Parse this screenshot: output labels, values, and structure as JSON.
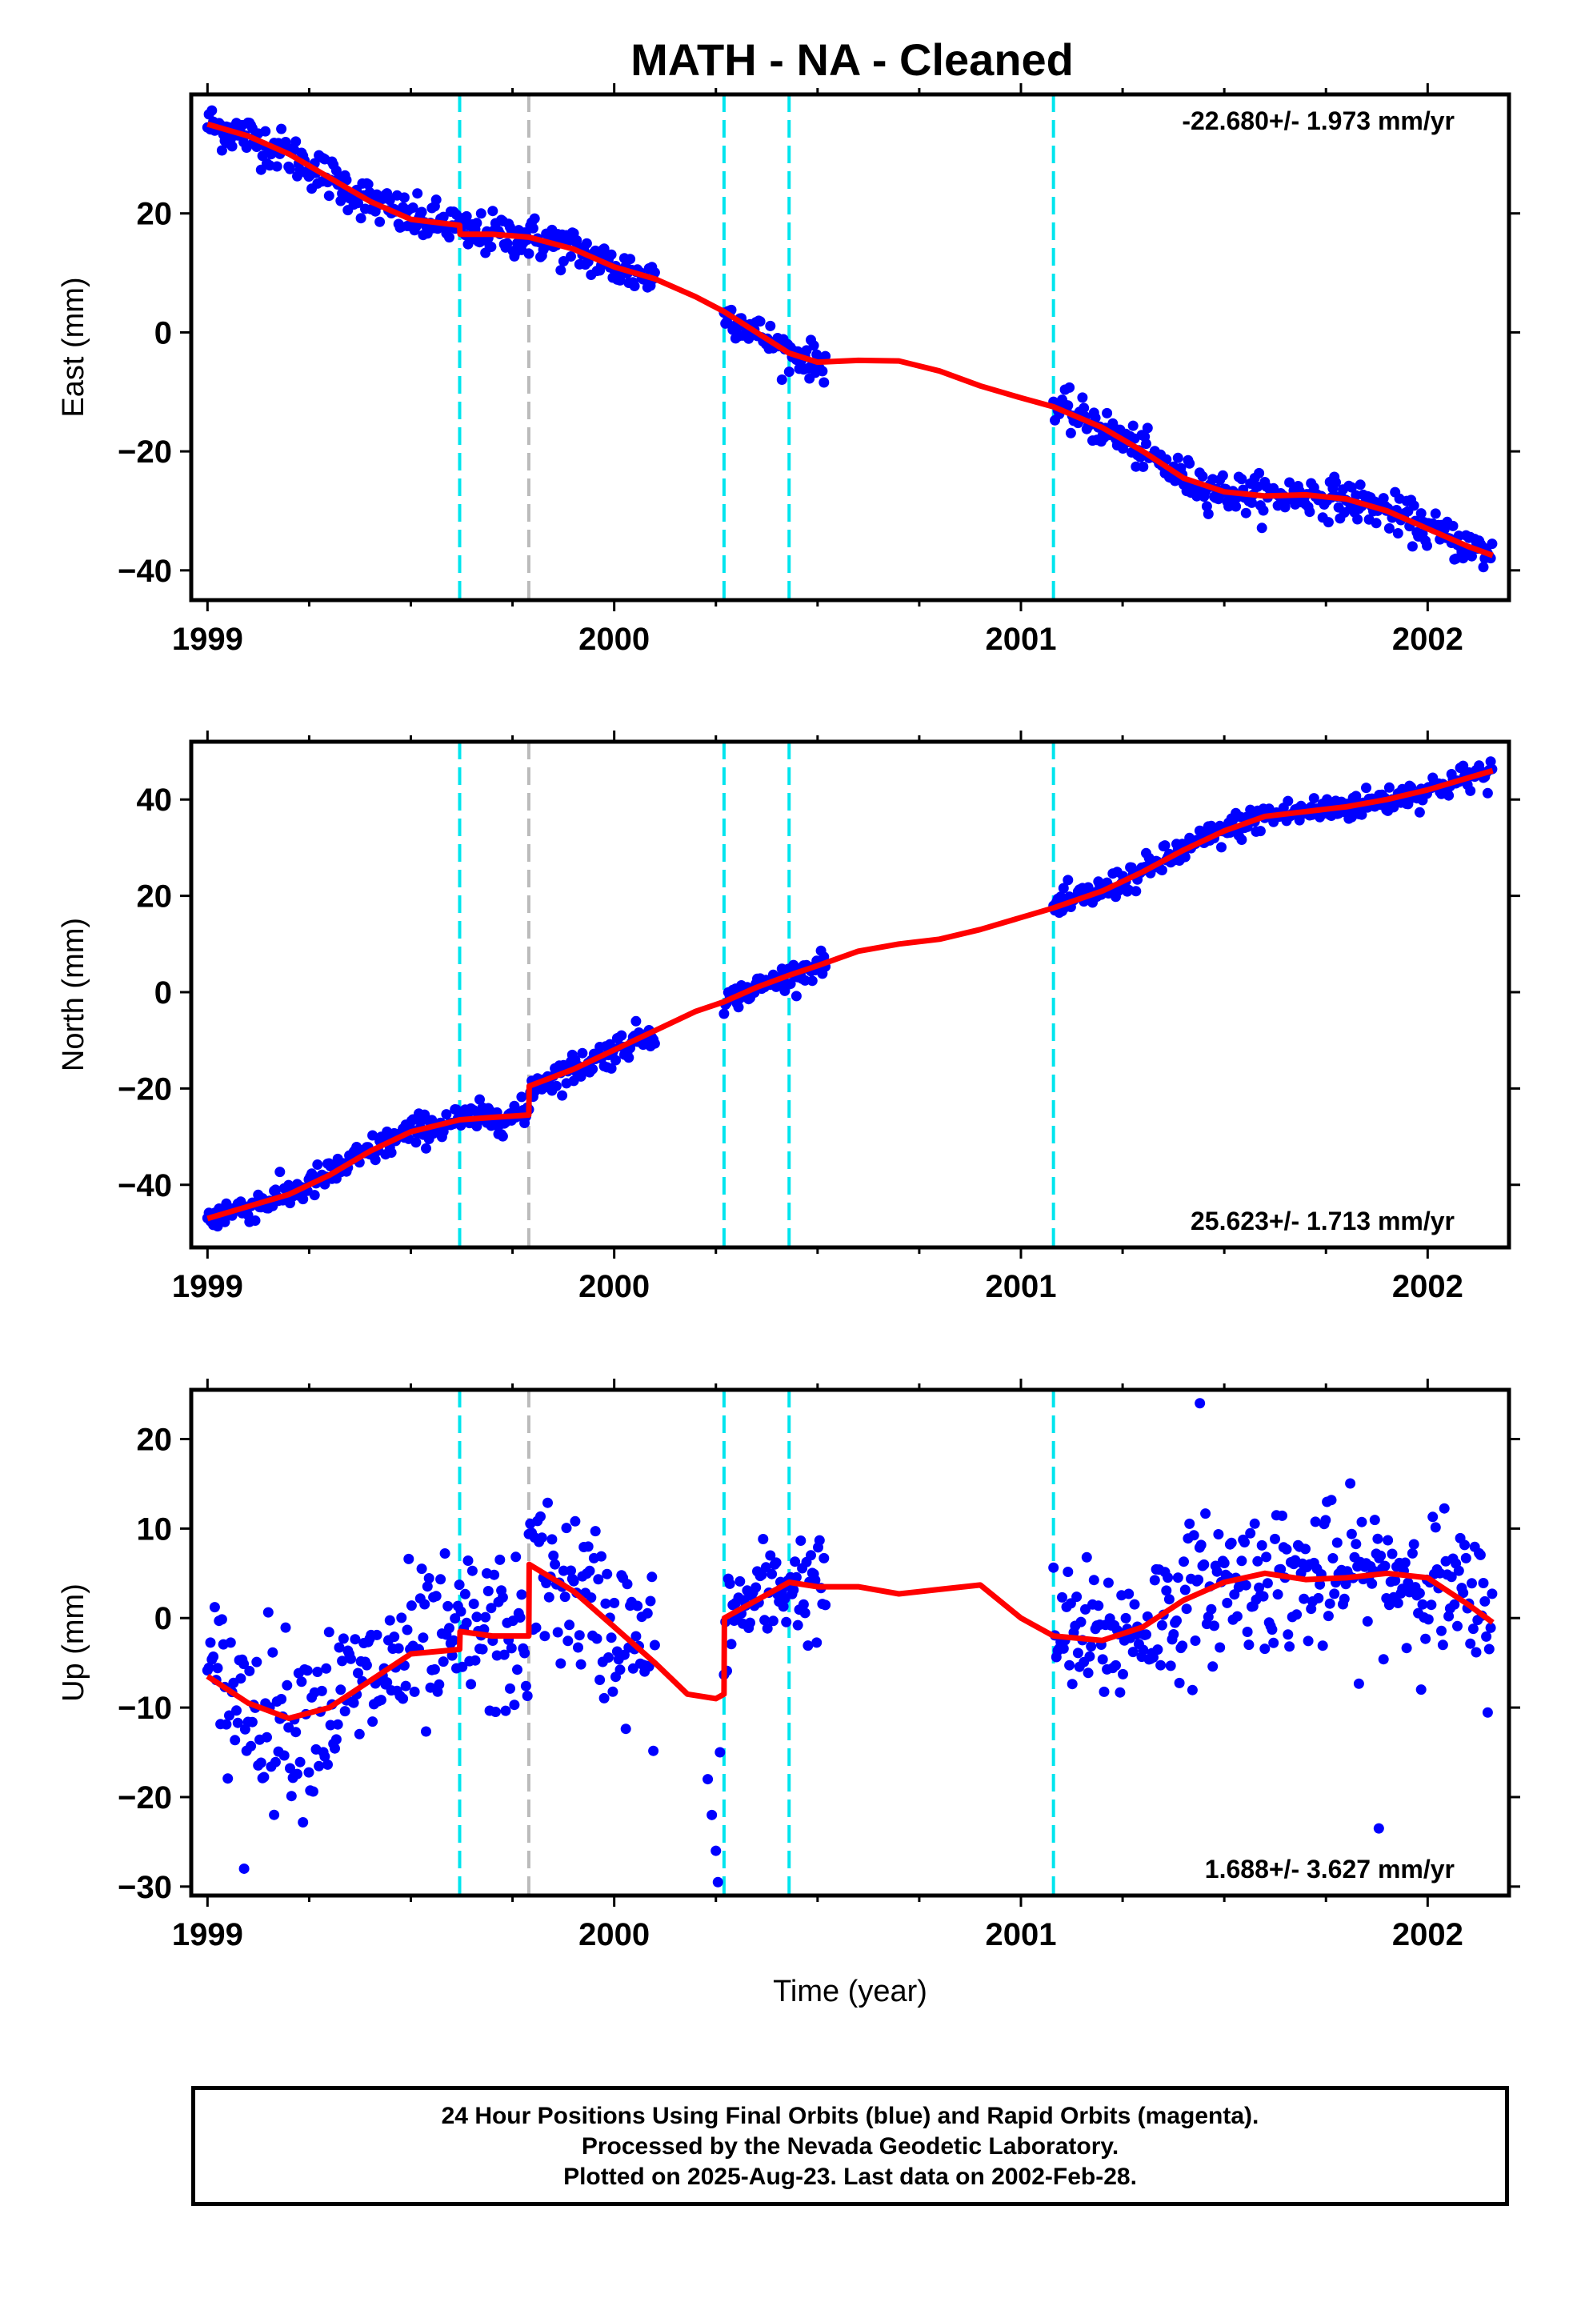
{
  "title": "MATH  - NA - Cleaned",
  "chart_data": [
    {
      "type": "scatter",
      "ylabel": "East (mm)",
      "xlabel": "",
      "rate_label": "-22.680+/- 1.973 mm/yr",
      "rate_corner": "top-right",
      "xlim": [
        1998.96,
        2002.2
      ],
      "ylim": [
        -45,
        40
      ],
      "xticks": [
        "1999",
        "2000",
        "2001",
        "2002"
      ],
      "yticks": [
        "20",
        "0",
        "−20",
        "−40"
      ],
      "ytick_values": [
        20,
        0,
        -20,
        -40
      ],
      "event_lines": [
        {
          "x": 1999.62,
          "color": "#00e5ee"
        },
        {
          "x": 1999.79,
          "color": "#bbbbbb"
        },
        {
          "x": 2000.27,
          "color": "#00e5ee"
        },
        {
          "x": 2000.43,
          "color": "#00e5ee"
        },
        {
          "x": 2001.08,
          "color": "#00e5ee"
        }
      ],
      "model_line": [
        [
          1999.0,
          35
        ],
        [
          1999.1,
          33
        ],
        [
          1999.2,
          30
        ],
        [
          1999.3,
          26
        ],
        [
          1999.4,
          22
        ],
        [
          1999.5,
          19
        ],
        [
          1999.62,
          18
        ],
        [
          1999.621,
          16.5
        ],
        [
          1999.7,
          16.5
        ],
        [
          1999.79,
          16
        ],
        [
          1999.9,
          14
        ],
        [
          2000.0,
          11
        ],
        [
          2000.1,
          9
        ],
        [
          2000.2,
          6
        ],
        [
          2000.27,
          3.5
        ],
        [
          2000.35,
          0
        ],
        [
          2000.43,
          -3.5
        ],
        [
          2000.5,
          -5
        ],
        [
          2000.6,
          -4.7
        ],
        [
          2000.7,
          -4.8
        ],
        [
          2000.8,
          -6.5
        ],
        [
          2000.9,
          -9
        ],
        [
          2001.0,
          -11
        ],
        [
          2001.08,
          -12.5
        ],
        [
          2001.2,
          -16
        ],
        [
          2001.3,
          -20
        ],
        [
          2001.4,
          -24.5
        ],
        [
          2001.5,
          -26.8
        ],
        [
          2001.6,
          -27.5
        ],
        [
          2001.7,
          -27.3
        ],
        [
          2001.8,
          -28
        ],
        [
          2001.9,
          -30
        ],
        [
          2002.0,
          -33
        ],
        [
          2002.1,
          -36
        ],
        [
          2002.16,
          -37.5
        ]
      ],
      "scatter_segments": [
        {
          "x0": 1999.0,
          "x1": 2000.1,
          "sd": 1.8
        },
        {
          "x0": 2000.27,
          "x1": 2000.52,
          "sd": 1.5
        },
        {
          "x0": 2001.08,
          "x1": 2002.16,
          "sd": 1.6
        }
      ],
      "point_color": "#0000ff",
      "line_color": "#ff0000"
    },
    {
      "type": "scatter",
      "ylabel": "North (mm)",
      "xlabel": "",
      "rate_label": "25.623+/- 1.713 mm/yr",
      "rate_corner": "bottom-right",
      "xlim": [
        1998.96,
        2002.2
      ],
      "ylim": [
        -53,
        52
      ],
      "xticks": [
        "1999",
        "2000",
        "2001",
        "2002"
      ],
      "yticks": [
        "40",
        "20",
        "0",
        "−20",
        "−40"
      ],
      "ytick_values": [
        40,
        20,
        0,
        -20,
        -40
      ],
      "event_lines": [
        {
          "x": 1999.62,
          "color": "#00e5ee"
        },
        {
          "x": 1999.79,
          "color": "#bbbbbb"
        },
        {
          "x": 2000.27,
          "color": "#00e5ee"
        },
        {
          "x": 2000.43,
          "color": "#00e5ee"
        },
        {
          "x": 2001.08,
          "color": "#00e5ee"
        }
      ],
      "model_line": [
        [
          1999.0,
          -47
        ],
        [
          1999.1,
          -44.5
        ],
        [
          1999.2,
          -42
        ],
        [
          1999.3,
          -38
        ],
        [
          1999.4,
          -33
        ],
        [
          1999.5,
          -29
        ],
        [
          1999.62,
          -26.5
        ],
        [
          1999.7,
          -26
        ],
        [
          1999.79,
          -25.5
        ],
        [
          1999.791,
          -19.5
        ],
        [
          1999.9,
          -16
        ],
        [
          2000.0,
          -12
        ],
        [
          2000.1,
          -8
        ],
        [
          2000.2,
          -4
        ],
        [
          2000.27,
          -2
        ],
        [
          2000.35,
          1
        ],
        [
          2000.43,
          3.5
        ],
        [
          2000.5,
          5.5
        ],
        [
          2000.6,
          8.5
        ],
        [
          2000.7,
          10
        ],
        [
          2000.8,
          11
        ],
        [
          2000.9,
          13
        ],
        [
          2001.0,
          15.5
        ],
        [
          2001.08,
          17.5
        ],
        [
          2001.2,
          21
        ],
        [
          2001.3,
          25
        ],
        [
          2001.4,
          29.5
        ],
        [
          2001.5,
          33.5
        ],
        [
          2001.6,
          36.5
        ],
        [
          2001.7,
          37.5
        ],
        [
          2001.8,
          38.5
        ],
        [
          2001.9,
          40
        ],
        [
          2002.0,
          42
        ],
        [
          2002.1,
          44.5
        ],
        [
          2002.16,
          46
        ]
      ],
      "scatter_segments": [
        {
          "x0": 1999.0,
          "x1": 2000.1,
          "sd": 1.6
        },
        {
          "x0": 2000.27,
          "x1": 2000.52,
          "sd": 1.2
        },
        {
          "x0": 2001.08,
          "x1": 2002.16,
          "sd": 1.5
        }
      ],
      "point_color": "#0000ff",
      "line_color": "#ff0000"
    },
    {
      "type": "scatter",
      "ylabel": "Up (mm)",
      "xlabel": "Time (year)",
      "rate_label": "1.688+/- 3.627 mm/yr",
      "rate_corner": "bottom-right",
      "xlim": [
        1998.96,
        2002.2
      ],
      "ylim": [
        -31,
        25.5
      ],
      "xticks": [
        "1999",
        "2000",
        "2001",
        "2002"
      ],
      "yticks": [
        "20",
        "10",
        "0",
        "−10",
        "−20",
        "−30"
      ],
      "ytick_values": [
        20,
        10,
        0,
        -10,
        -20,
        -30
      ],
      "event_lines": [
        {
          "x": 1999.62,
          "color": "#00e5ee"
        },
        {
          "x": 1999.79,
          "color": "#bbbbbb"
        },
        {
          "x": 2000.27,
          "color": "#00e5ee"
        },
        {
          "x": 2000.43,
          "color": "#00e5ee"
        },
        {
          "x": 2001.08,
          "color": "#00e5ee"
        }
      ],
      "model_line": [
        [
          1999.0,
          -6.5
        ],
        [
          1999.1,
          -9.5
        ],
        [
          1999.2,
          -11.2
        ],
        [
          1999.3,
          -10
        ],
        [
          1999.4,
          -7
        ],
        [
          1999.5,
          -4
        ],
        [
          1999.62,
          -3.5
        ],
        [
          1999.621,
          -1.5
        ],
        [
          1999.7,
          -2
        ],
        [
          1999.79,
          -2
        ],
        [
          1999.791,
          6
        ],
        [
          1999.9,
          3
        ],
        [
          2000.0,
          -1
        ],
        [
          2000.1,
          -5
        ],
        [
          2000.18,
          -8.5
        ],
        [
          2000.25,
          -9
        ],
        [
          2000.27,
          -8.5
        ],
        [
          2000.271,
          0
        ],
        [
          2000.35,
          2
        ],
        [
          2000.43,
          4
        ],
        [
          2000.5,
          3.5
        ],
        [
          2000.6,
          3.5
        ],
        [
          2000.7,
          2.7
        ],
        [
          2000.8,
          3.2
        ],
        [
          2000.9,
          3.7
        ],
        [
          2001.0,
          0
        ],
        [
          2001.08,
          -2
        ],
        [
          2001.2,
          -2.5
        ],
        [
          2001.3,
          -1
        ],
        [
          2001.4,
          2
        ],
        [
          2001.5,
          4
        ],
        [
          2001.6,
          5
        ],
        [
          2001.7,
          4.3
        ],
        [
          2001.8,
          4.5
        ],
        [
          2001.9,
          5
        ],
        [
          2002.0,
          4.5
        ],
        [
          2002.1,
          1.5
        ],
        [
          2002.16,
          -0.5
        ]
      ],
      "scatter_segments": [
        {
          "x0": 1999.0,
          "x1": 2000.1,
          "sd": 4.6
        },
        {
          "x0": 2000.27,
          "x1": 2000.52,
          "sd": 3.0
        },
        {
          "x0": 2001.08,
          "x1": 2002.16,
          "sd": 4.0
        }
      ],
      "outliers": [
        [
          2000.23,
          -18
        ],
        [
          2000.24,
          -22
        ],
        [
          2000.25,
          -26
        ],
        [
          2000.255,
          -29.5
        ],
        [
          2000.26,
          -15
        ],
        [
          2001.44,
          24
        ],
        [
          1999.09,
          -28
        ],
        [
          2001.88,
          -23.5
        ]
      ],
      "point_color": "#0000ff",
      "line_color": "#ff0000"
    }
  ],
  "footer": {
    "line1": "24 Hour Positions Using Final Orbits (blue) and Rapid Orbits (magenta).",
    "line2": "Processed by the Nevada Geodetic Laboratory.",
    "line3": "Plotted on 2025-Aug-23. Last data on 2002-Feb-28."
  }
}
